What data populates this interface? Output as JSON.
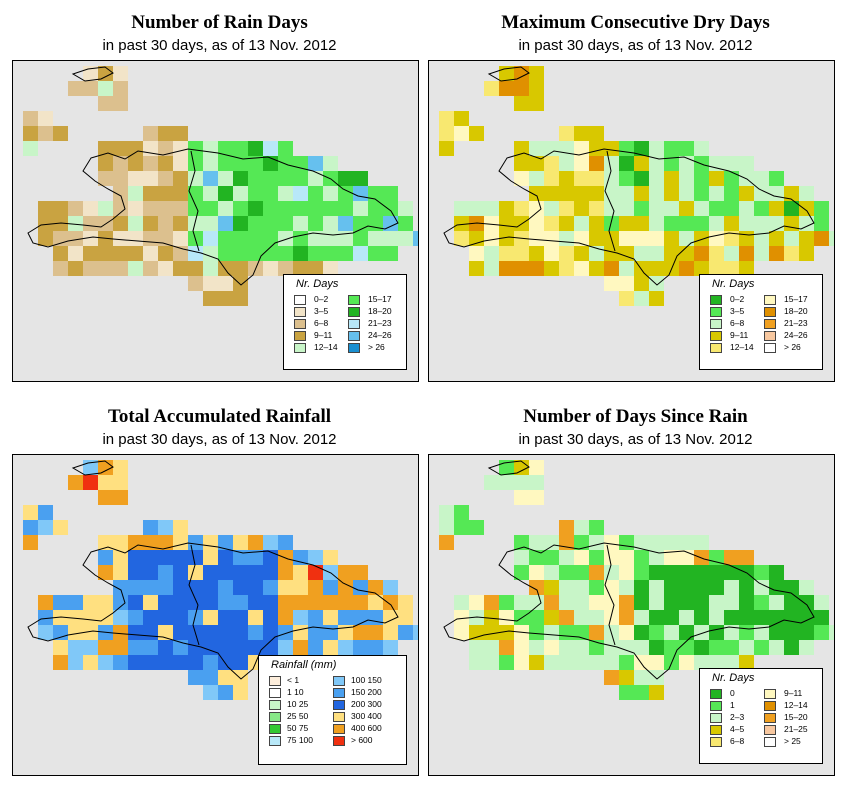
{
  "panels": [
    {
      "id": "rain-days",
      "title": "Number of Rain Days",
      "subtitle": "in past 30 days, as of  13 Nov. 2012",
      "legend": {
        "title": "Nr. Days",
        "items": [
          {
            "label": "0–2",
            "color": "#ffffff"
          },
          {
            "label": "3–5",
            "color": "#f2e4c8"
          },
          {
            "label": "6–8",
            "color": "#dcc08e"
          },
          {
            "label": "9–11",
            "color": "#c9a341"
          },
          {
            "label": "12–14",
            "color": "#c8f5c8"
          },
          {
            "label": "15–17",
            "color": "#55e855"
          },
          {
            "label": "18–20",
            "color": "#22b422"
          },
          {
            "label": "21–23",
            "color": "#b8e8f8"
          },
          {
            "label": "24–26",
            "color": "#66c0ee"
          },
          {
            "label": "> 26",
            "color": "#1a8fd0"
          }
        ]
      }
    },
    {
      "id": "dry-days",
      "title": "Maximum Consecutive Dry Days",
      "subtitle": "in past 30 days, as of  13 Nov. 2012",
      "legend": {
        "title": "Nr. Days",
        "items": [
          {
            "label": "0–2",
            "color": "#22b422"
          },
          {
            "label": "3–5",
            "color": "#55e855"
          },
          {
            "label": "6–8",
            "color": "#c8f5c8"
          },
          {
            "label": "9–11",
            "color": "#d8c800"
          },
          {
            "label": "12–14",
            "color": "#f8e870"
          },
          {
            "label": "15–17",
            "color": "#fff8c0"
          },
          {
            "label": "18–20",
            "color": "#e09000"
          },
          {
            "label": "21–23",
            "color": "#f0a020"
          },
          {
            "label": "24–26",
            "color": "#f8c8a0"
          },
          {
            "label": "> 26",
            "color": "#ffffff"
          }
        ]
      }
    },
    {
      "id": "rainfall",
      "title": "Total Accumulated Rainfall",
      "subtitle": "in past 30 days, as of  13 Nov. 2012",
      "legend": {
        "title": "Rainfall (mm)",
        "items": [
          {
            "label": "< 1",
            "color": "#fdeedc"
          },
          {
            "label": "1   10",
            "color": "#ffffff"
          },
          {
            "label": "10   25",
            "color": "#c8f5c8"
          },
          {
            "label": "25   50",
            "color": "#88e888"
          },
          {
            "label": "50   75",
            "color": "#33c833"
          },
          {
            "label": "75   100",
            "color": "#b8e8f8"
          },
          {
            "label": "100   150",
            "color": "#80c8f8"
          },
          {
            "label": "150   200",
            "color": "#4aa0f0"
          },
          {
            "label": "200   300",
            "color": "#2266e0"
          },
          {
            "label": "300   400",
            "color": "#ffe080"
          },
          {
            "label": "400   600",
            "color": "#f0a020"
          },
          {
            "label": "> 600",
            "color": "#f03010"
          }
        ]
      }
    },
    {
      "id": "days-since-rain",
      "title": "Number of Days Since Rain",
      "subtitle": "in past 30 days, as of  13 Nov. 2012",
      "legend": {
        "title": "Nr. Days",
        "items": [
          {
            "label": "0",
            "color": "#22b422"
          },
          {
            "label": "1",
            "color": "#55e855"
          },
          {
            "label": "2–3",
            "color": "#c8f5c8"
          },
          {
            "label": "4–5",
            "color": "#d8c800"
          },
          {
            "label": "6–8",
            "color": "#f8e870"
          },
          {
            "label": "9–11",
            "color": "#fff8c0"
          },
          {
            "label": "12–14",
            "color": "#e09000"
          },
          {
            "label": "15–20",
            "color": "#f0a020"
          },
          {
            "label": "21–25",
            "color": "#f8c8a0"
          },
          {
            "label": "> 25",
            "color": "#ffffff"
          }
        ]
      }
    }
  ]
}
